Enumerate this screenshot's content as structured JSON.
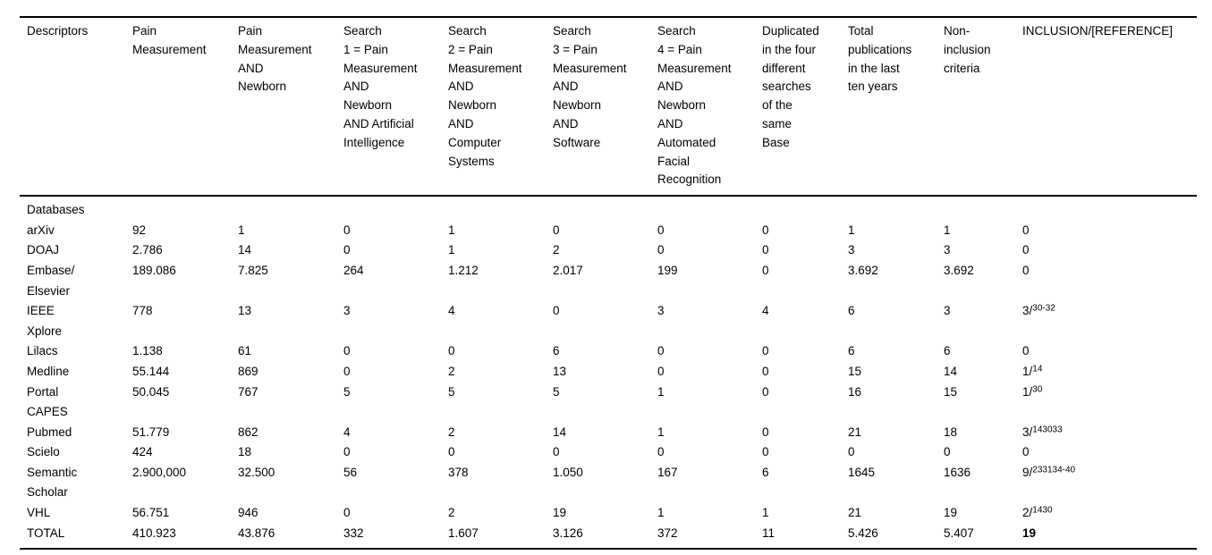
{
  "table": {
    "columns": [
      "Descriptors",
      "Pain\nMeasurement",
      "Pain\nMeasurement\nAND\nNewborn",
      "Search\n1 = Pain\nMeasurement\nAND\nNewborn\nAND Artificial\nIntelligence",
      "Search\n2 = Pain\nMeasurement\nAND\nNewborn\nAND\nComputer\nSystems",
      "Search\n3 = Pain\nMeasurement\nAND\nNewborn\nAND\nSoftware",
      "Search\n4 = Pain\nMeasurement\nAND\nNewborn\nAND\nAutomated\nFacial\nRecognition",
      "Duplicated\nin the four\ndifferent\nsearches\nof the\nsame\nBase",
      "Total\npublications\nin the last\nten years",
      "Non-\ninclusion\ncriteria",
      "INCLUSION/[REFERENCE]"
    ],
    "rows": [
      {
        "name": "Databases",
        "values": [
          "",
          "",
          "",
          "",
          "",
          "",
          "",
          "",
          ""
        ],
        "inclusion": {
          "text": "",
          "sup": "",
          "bold": false
        }
      },
      {
        "name": "arXiv",
        "values": [
          "92",
          "1",
          "0",
          "1",
          "0",
          "0",
          "0",
          "1",
          "1"
        ],
        "inclusion": {
          "text": "0",
          "sup": "",
          "bold": false
        }
      },
      {
        "name": "DOAJ",
        "values": [
          "2.786",
          "14",
          "0",
          "1",
          "2",
          "0",
          "0",
          "3",
          "3"
        ],
        "inclusion": {
          "text": "0",
          "sup": "",
          "bold": false
        }
      },
      {
        "name": "Embase/\nElsevier",
        "values": [
          "189.086",
          "7.825",
          "264",
          "1.212",
          "2.017",
          "199",
          "0",
          "3.692",
          "3.692"
        ],
        "inclusion": {
          "text": "0",
          "sup": "",
          "bold": false
        }
      },
      {
        "name": "IEEE\nXplore",
        "values": [
          "778",
          "13",
          "3",
          "4",
          "0",
          "3",
          "4",
          "6",
          "3"
        ],
        "inclusion": {
          "text": "3/",
          "sup": "30-32",
          "bold": false
        }
      },
      {
        "name": "Lilacs",
        "values": [
          "1.138",
          "61",
          "0",
          "0",
          "6",
          "0",
          "0",
          "6",
          "6"
        ],
        "inclusion": {
          "text": "0",
          "sup": "",
          "bold": false
        }
      },
      {
        "name": "Medline",
        "values": [
          "55.144",
          "869",
          "0",
          "2",
          "13",
          "0",
          "0",
          "15",
          "14"
        ],
        "inclusion": {
          "text": "1/",
          "sup": "14",
          "bold": false
        }
      },
      {
        "name": "Portal\nCAPES",
        "values": [
          "50.045",
          "767",
          "5",
          "5",
          "5",
          "1",
          "0",
          "16",
          "15"
        ],
        "inclusion": {
          "text": "1/",
          "sup": "30",
          "bold": false
        }
      },
      {
        "name": "Pubmed",
        "values": [
          "51.779",
          "862",
          "4",
          "2",
          "14",
          "1",
          "0",
          "21",
          "18"
        ],
        "inclusion": {
          "text": "3/",
          "sup": "143033",
          "bold": false
        }
      },
      {
        "name": "Scielo",
        "values": [
          "424",
          "18",
          "0",
          "0",
          "0",
          "0",
          "0",
          "0",
          "0"
        ],
        "inclusion": {
          "text": "0",
          "sup": "",
          "bold": false
        }
      },
      {
        "name": "Semantic\nScholar",
        "values": [
          "2.900,000",
          "32.500",
          "56",
          "378",
          "1.050",
          "167",
          "6",
          "1645",
          "1636"
        ],
        "inclusion": {
          "text": "9/",
          "sup": "233134-40",
          "bold": false
        }
      },
      {
        "name": "VHL",
        "values": [
          "56.751",
          "946",
          "0",
          "2",
          "19",
          "1",
          "1",
          "21",
          "19"
        ],
        "inclusion": {
          "text": "2/",
          "sup": "1430",
          "bold": false
        }
      },
      {
        "name": "TOTAL",
        "values": [
          "410.923",
          "43.876",
          "332",
          "1.607",
          "3.126",
          "372",
          "11",
          "5.426",
          "5.407"
        ],
        "inclusion": {
          "text": "19",
          "sup": "",
          "bold": true
        }
      }
    ]
  }
}
